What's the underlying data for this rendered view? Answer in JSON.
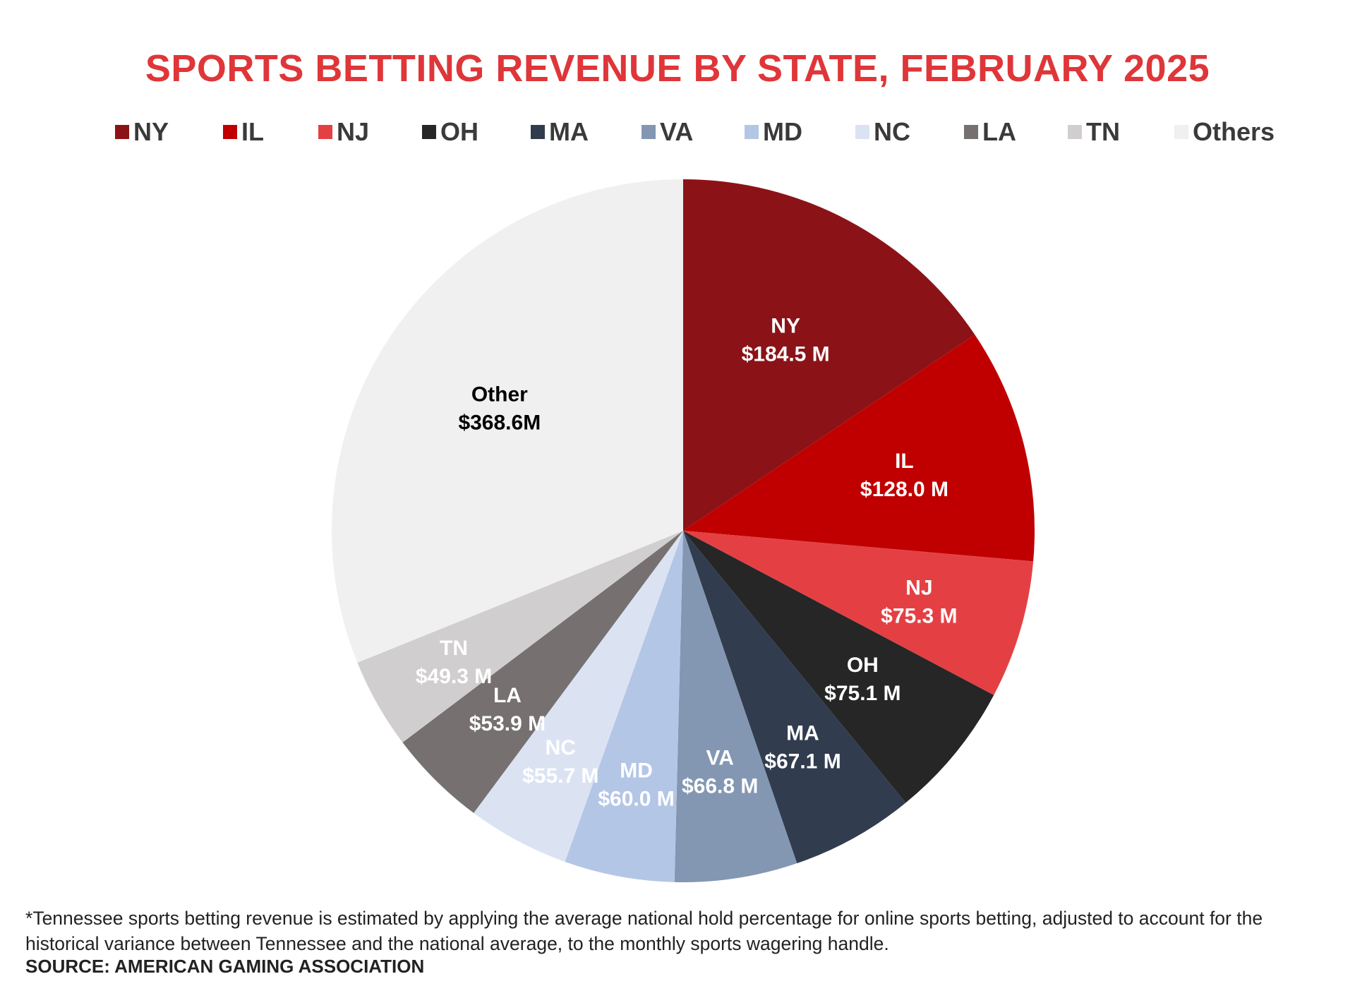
{
  "chart_data": {
    "type": "pie",
    "title": "SPORTS BETTING REVENUE BY STATE, FEBRUARY 2025",
    "legend": [
      "NY",
      "IL",
      "NJ",
      "OH",
      "MA",
      "VA",
      "MD",
      "NC",
      "LA",
      "TN",
      "Others"
    ],
    "legend_position": "top",
    "slices": [
      {
        "label": "NY",
        "value": 184.5,
        "value_label": "$184.5 M",
        "color": "#8b1317",
        "text_color": "#ffffff"
      },
      {
        "label": "IL",
        "value": 128.0,
        "value_label": "$128.0 M",
        "color": "#c00000",
        "text_color": "#ffffff"
      },
      {
        "label": "NJ",
        "value": 75.3,
        "value_label": "$75.3 M",
        "color": "#e44044",
        "text_color": "#ffffff"
      },
      {
        "label": "OH",
        "value": 75.1,
        "value_label": "$75.1 M",
        "color": "#262626",
        "text_color": "#ffffff"
      },
      {
        "label": "MA",
        "value": 67.1,
        "value_label": "$67.1 M",
        "color": "#323c4f",
        "text_color": "#ffffff"
      },
      {
        "label": "VA",
        "value": 66.8,
        "value_label": "$66.8 M",
        "color": "#8397b2",
        "text_color": "#ffffff"
      },
      {
        "label": "MD",
        "value": 60.0,
        "value_label": "$60.0 M",
        "color": "#b4c6e6",
        "text_color": "#ffffff"
      },
      {
        "label": "NC",
        "value": 55.7,
        "value_label": "$55.7 M",
        "color": "#dbe3f3",
        "text_color": "#ffffff"
      },
      {
        "label": "LA",
        "value": 53.9,
        "value_label": "$53.9 M",
        "color": "#767070",
        "text_color": "#ffffff"
      },
      {
        "label": "TN",
        "value": 49.3,
        "value_label": "$49.3 M",
        "color": "#d0cece",
        "text_color": "#ffffff"
      },
      {
        "label": "Other",
        "value": 368.6,
        "value_label": "$368.6M",
        "color": "#f0f0f0",
        "text_color": "#000000"
      }
    ]
  },
  "footnote": "*Tennessee sports betting revenue is estimated by applying the average national hold percentage for online sports betting, adjusted to account for the historical variance between Tennessee and the national average, to the monthly sports wagering handle.",
  "source": "SOURCE: AMERICAN GAMING ASSOCIATION"
}
